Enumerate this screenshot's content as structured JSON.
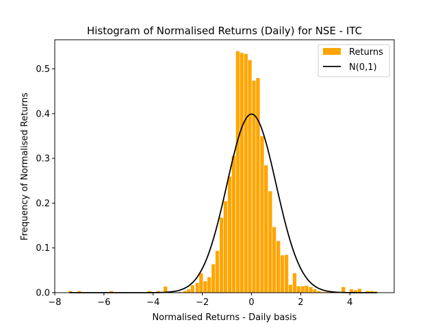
{
  "chart_data": {
    "type": "bar",
    "title": "Histogram of Normalised Returns (Daily) for NSE - ITC",
    "xlabel": "Normalised Returns - Daily basis",
    "ylabel": "Frequency of Normalised Returns",
    "xlim": [
      -8.0,
      5.8
    ],
    "ylim": [
      0,
      0.565
    ],
    "xticks": [
      -8,
      -6,
      -4,
      -2,
      0,
      2,
      4
    ],
    "xtick_labels": [
      "−8",
      "−6",
      "−4",
      "−2",
      "0",
      "2",
      "4"
    ],
    "yticks": [
      0.0,
      0.1,
      0.2,
      0.3,
      0.4,
      0.5
    ],
    "ytick_labels": [
      "0.0",
      "0.1",
      "0.2",
      "0.3",
      "0.4",
      "0.5"
    ],
    "grid": false,
    "legend": {
      "position": "top-right",
      "entries": [
        "Returns",
        "N(0,1)"
      ]
    },
    "bar_color": "#ffa500",
    "line_color": "#000000",
    "series": [
      {
        "name": "Returns",
        "type": "bar",
        "bin_width": 0.165,
        "bin_centers": [
          -7.37,
          -7.0,
          -5.7,
          -4.15,
          -3.8,
          -3.5,
          -2.9,
          -2.7,
          -2.55,
          -2.4,
          -2.2,
          -2.05,
          -1.88,
          -1.72,
          -1.55,
          -1.39,
          -1.22,
          -1.06,
          -0.89,
          -0.73,
          -0.56,
          -0.4,
          -0.23,
          -0.07,
          0.1,
          0.26,
          0.43,
          0.59,
          0.76,
          0.92,
          1.09,
          1.25,
          1.42,
          1.58,
          1.75,
          1.91,
          2.08,
          2.24,
          2.41,
          2.57,
          2.74,
          2.9,
          3.07,
          3.4,
          3.73,
          4.06,
          4.23,
          4.39,
          4.72,
          4.89,
          5.05
        ],
        "values": [
          0.004,
          0.004,
          0.004,
          0.004,
          0.004,
          0.014,
          0.002,
          0.004,
          0.008,
          0.017,
          0.022,
          0.044,
          0.026,
          0.035,
          0.064,
          0.094,
          0.168,
          0.205,
          0.26,
          0.306,
          0.54,
          0.536,
          0.534,
          0.52,
          0.474,
          0.48,
          0.35,
          0.285,
          0.227,
          0.147,
          0.116,
          0.084,
          0.085,
          0.018,
          0.044,
          0.015,
          0.015,
          0.016,
          0.013,
          0.008,
          0.004,
          0.002,
          0.002,
          0.002,
          0.013,
          0.008,
          0.006,
          0.009,
          0.004,
          0.004,
          0.003
        ]
      },
      {
        "name": "N(0,1)",
        "type": "line",
        "x_range": [
          -7.4,
          5.1
        ],
        "function": "standard normal pdf"
      }
    ]
  }
}
